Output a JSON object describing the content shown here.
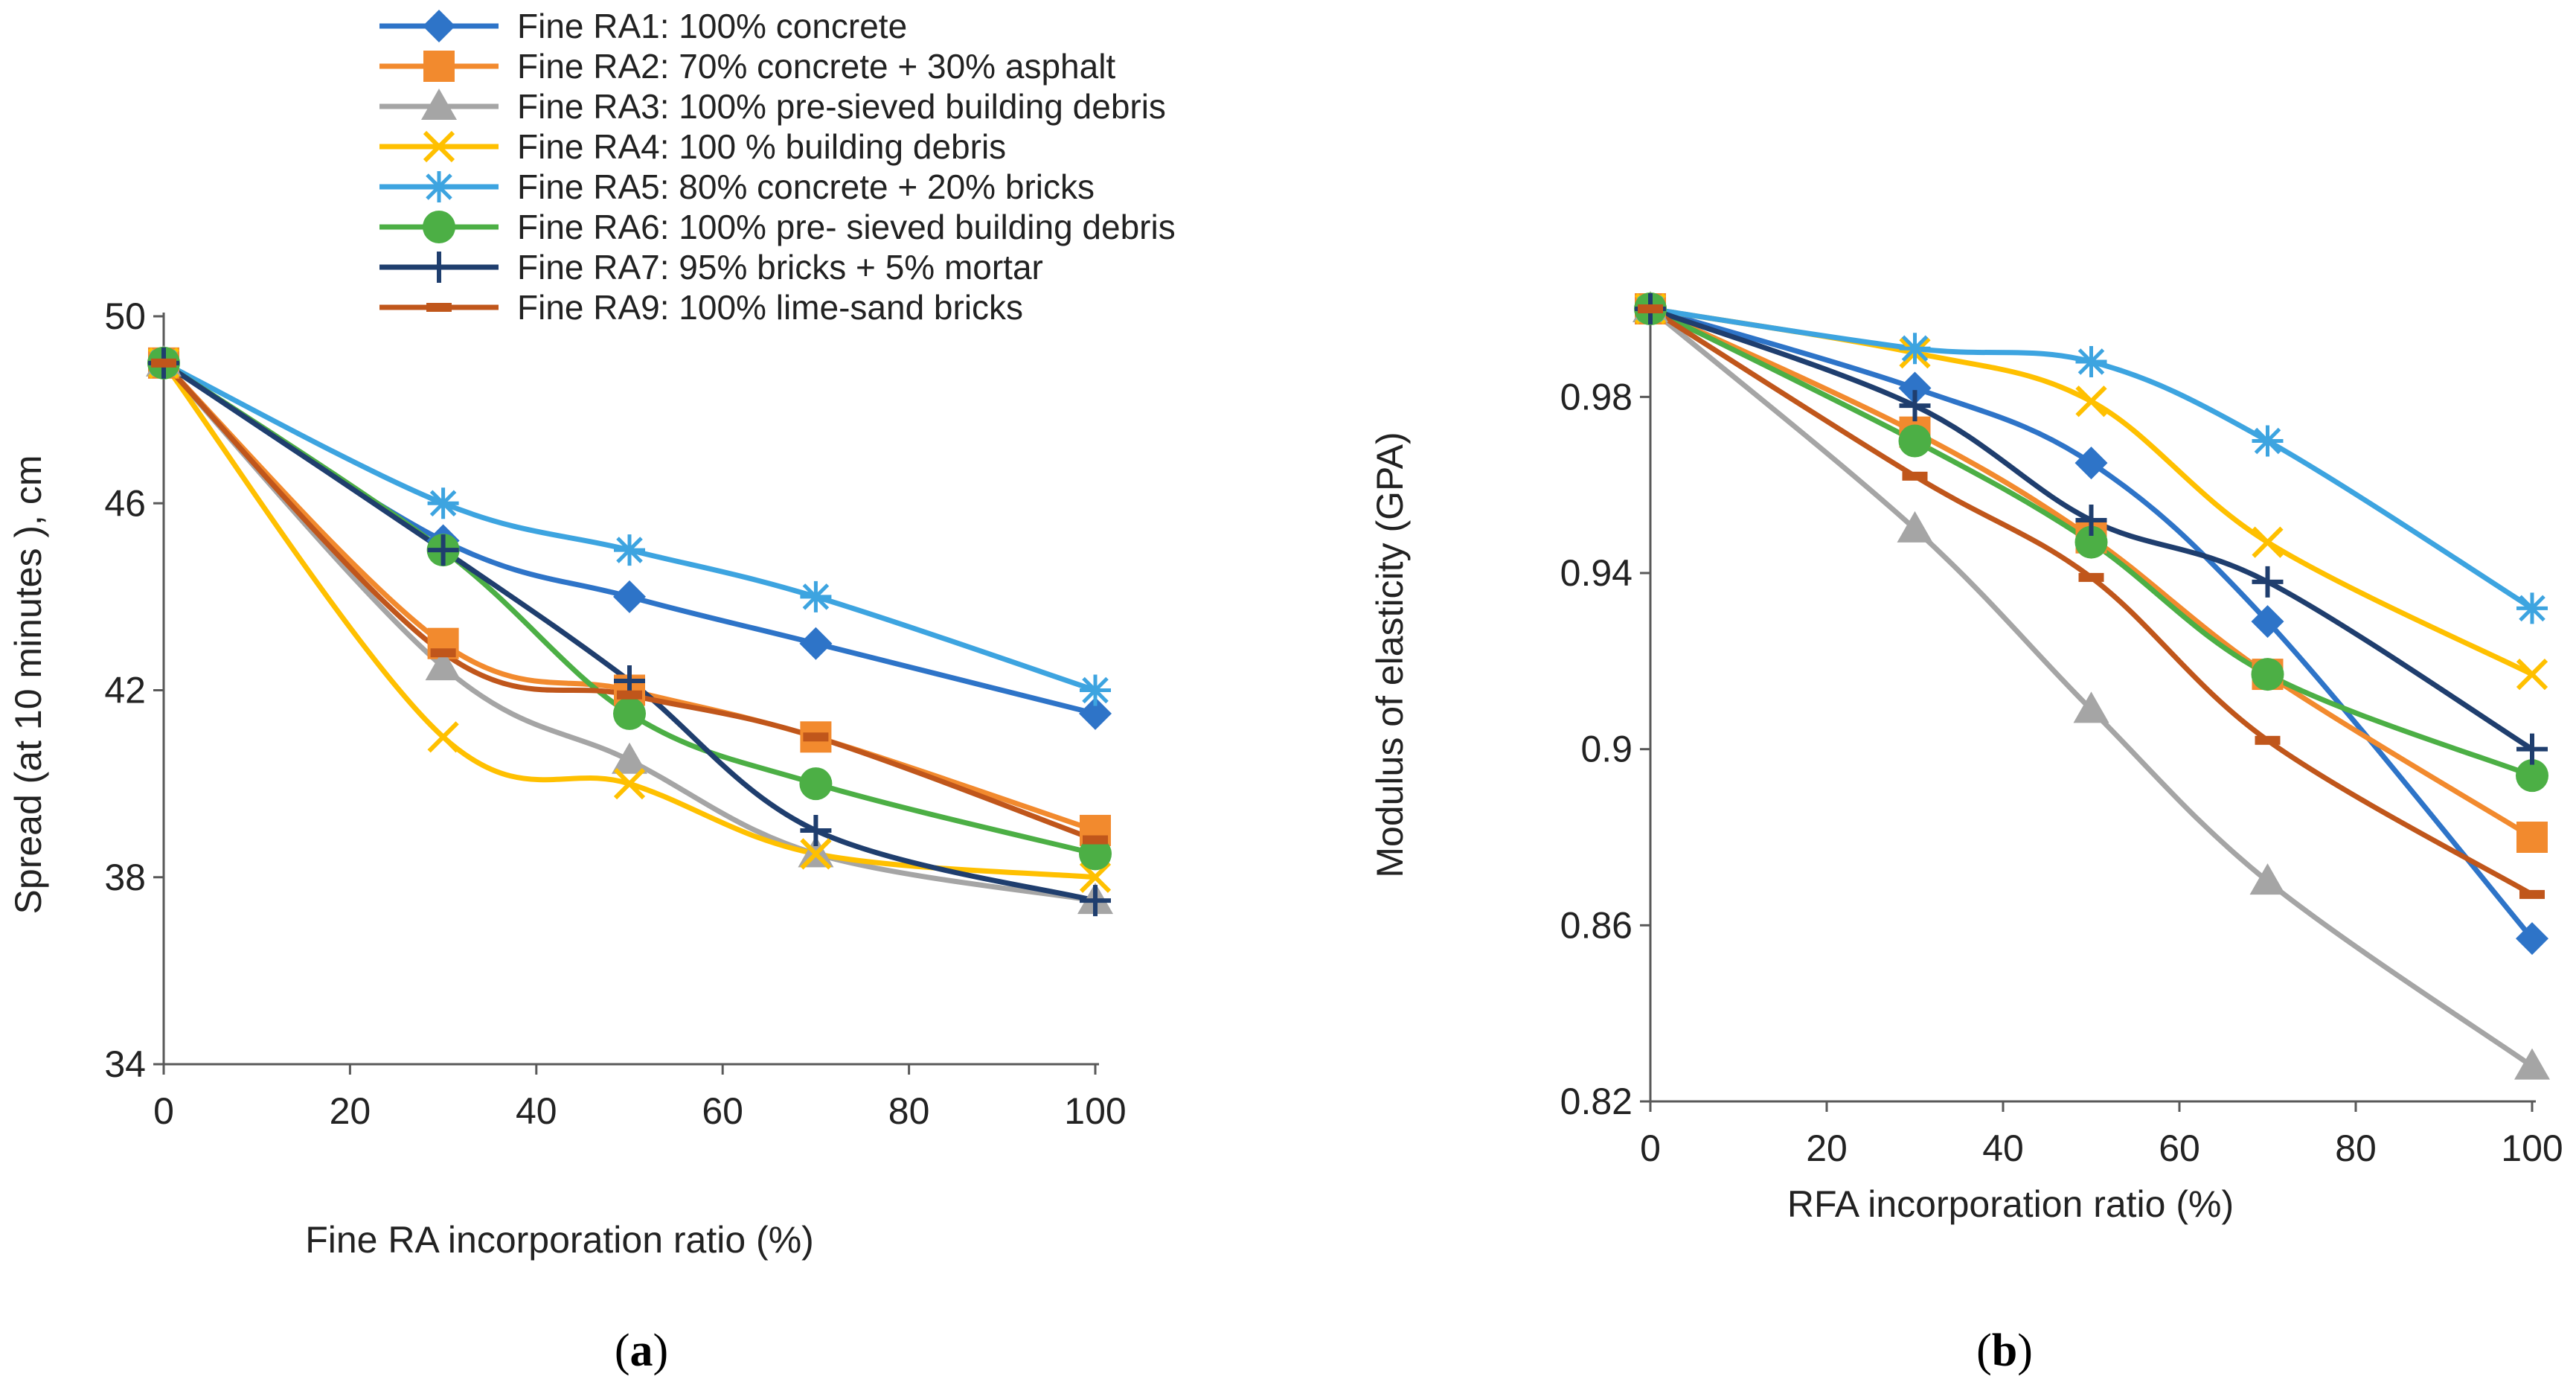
{
  "chart_data": [
    {
      "type": "line",
      "title": "",
      "panel_label": "(a)",
      "panel_letter": "a",
      "xlabel": "Fine RA incorporation ratio (%)",
      "ylabel": "Spread (at 10 minutes ), cm",
      "xlim": [
        0,
        100
      ],
      "ylim": [
        34,
        50
      ],
      "xticks": [
        0,
        20,
        40,
        60,
        80,
        100
      ],
      "yticks": [
        34,
        38,
        42,
        46,
        50
      ],
      "ytick_labels": [
        "34",
        "38",
        "42",
        "46",
        "50"
      ],
      "legend": "top-center",
      "series": [
        {
          "name": "Fine RA1: 100% concrete",
          "color": "#2e74c8",
          "marker": "diamond",
          "x": [
            0,
            30,
            50,
            70,
            100
          ],
          "values": [
            49,
            45.2,
            44,
            43,
            41.5
          ]
        },
        {
          "name": "Fine RA2:  70% concrete + 30% asphalt",
          "color": "#f28a2e",
          "marker": "square",
          "x": [
            0,
            30,
            50,
            70,
            100
          ],
          "values": [
            49,
            43,
            42,
            41,
            39
          ]
        },
        {
          "name": "Fine RA3: 100% pre-sieved building debris",
          "color": "#a5a5a5",
          "marker": "triangle",
          "x": [
            0,
            30,
            50,
            70,
            100
          ],
          "values": [
            49,
            42.5,
            40.5,
            38.5,
            37.5
          ]
        },
        {
          "name": "Fine RA4: 100 % building debris",
          "color": "#ffc000",
          "marker": "x",
          "x": [
            0,
            30,
            50,
            70,
            100
          ],
          "values": [
            49,
            41,
            40,
            38.5,
            38
          ]
        },
        {
          "name": "Fine RA5:  80% concrete + 20% bricks",
          "color": "#3da4e0",
          "marker": "star",
          "x": [
            0,
            30,
            50,
            70,
            100
          ],
          "values": [
            49,
            46,
            45,
            44,
            42
          ]
        },
        {
          "name": "Fine RA6: 100% pre- sieved building debris",
          "color": "#4caf45",
          "marker": "circle",
          "x": [
            0,
            30,
            50,
            70,
            100
          ],
          "values": [
            49,
            45,
            41.5,
            40,
            38.5
          ]
        },
        {
          "name": "Fine RA7: 95% bricks + 5% mortar",
          "color": "#1f3e6e",
          "marker": "plus",
          "x": [
            0,
            30,
            50,
            70,
            100
          ],
          "values": [
            49,
            45,
            42.2,
            39,
            37.5
          ]
        },
        {
          "name": "Fine RA9: 100% lime-sand bricks",
          "color": "#c0561b",
          "marker": "dash",
          "x": [
            0,
            30,
            50,
            70,
            100
          ],
          "values": [
            49,
            42.8,
            41.9,
            41,
            38.8
          ]
        }
      ]
    },
    {
      "type": "line",
      "title": "",
      "panel_label": "(b)",
      "panel_letter": "b",
      "xlabel": "RFA incorporation ratio (%)",
      "ylabel": "Modulus of elasticity (GPA)",
      "xlim": [
        0,
        100
      ],
      "ylim": [
        0.82,
        1.0
      ],
      "xticks": [
        0,
        20,
        40,
        60,
        80,
        100
      ],
      "yticks": [
        0.82,
        0.86,
        0.9,
        0.94,
        0.98
      ],
      "ytick_labels": [
        "0.82",
        "0.86",
        "0.9",
        "0.94",
        "0.98"
      ],
      "legend": "none",
      "series": [
        {
          "name": "Fine RA1: 100% concrete",
          "color": "#2e74c8",
          "marker": "diamond",
          "x": [
            0,
            30,
            50,
            70,
            100
          ],
          "values": [
            1.0,
            0.982,
            0.965,
            0.929,
            0.857
          ]
        },
        {
          "name": "Fine RA2:  70% concrete + 30% asphalt",
          "color": "#f28a2e",
          "marker": "square",
          "x": [
            0,
            30,
            50,
            70,
            100
          ],
          "values": [
            1.0,
            0.972,
            0.948,
            0.917,
            0.88
          ]
        },
        {
          "name": "Fine RA3: 100% pre-sieved building debris",
          "color": "#a5a5a5",
          "marker": "triangle",
          "x": [
            0,
            30,
            50,
            70,
            100
          ],
          "values": [
            1.0,
            0.95,
            0.909,
            0.87,
            0.828
          ]
        },
        {
          "name": "Fine RA4: 100 % building debris",
          "color": "#ffc000",
          "marker": "x",
          "x": [
            0,
            30,
            50,
            70,
            100
          ],
          "values": [
            1.0,
            0.99,
            0.979,
            0.947,
            0.917
          ]
        },
        {
          "name": "Fine RA5:  80% concrete + 20% bricks",
          "color": "#3da4e0",
          "marker": "star",
          "x": [
            0,
            30,
            50,
            70,
            100
          ],
          "values": [
            1.0,
            0.991,
            0.988,
            0.97,
            0.932
          ]
        },
        {
          "name": "Fine RA6: 100% pre- sieved building debris",
          "color": "#4caf45",
          "marker": "circle",
          "x": [
            0,
            30,
            50,
            70,
            100
          ],
          "values": [
            1.0,
            0.97,
            0.947,
            0.917,
            0.894
          ]
        },
        {
          "name": "Fine RA7: 95% bricks + 5% mortar",
          "color": "#1f3e6e",
          "marker": "plus",
          "x": [
            0,
            30,
            50,
            70,
            100
          ],
          "values": [
            1.0,
            0.978,
            0.952,
            0.938,
            0.9
          ]
        },
        {
          "name": "Fine RA9: 100% lime-sand bricks",
          "color": "#c0561b",
          "marker": "dash",
          "x": [
            0,
            30,
            50,
            70,
            100
          ],
          "values": [
            1.0,
            0.962,
            0.939,
            0.902,
            0.867
          ]
        }
      ]
    }
  ]
}
